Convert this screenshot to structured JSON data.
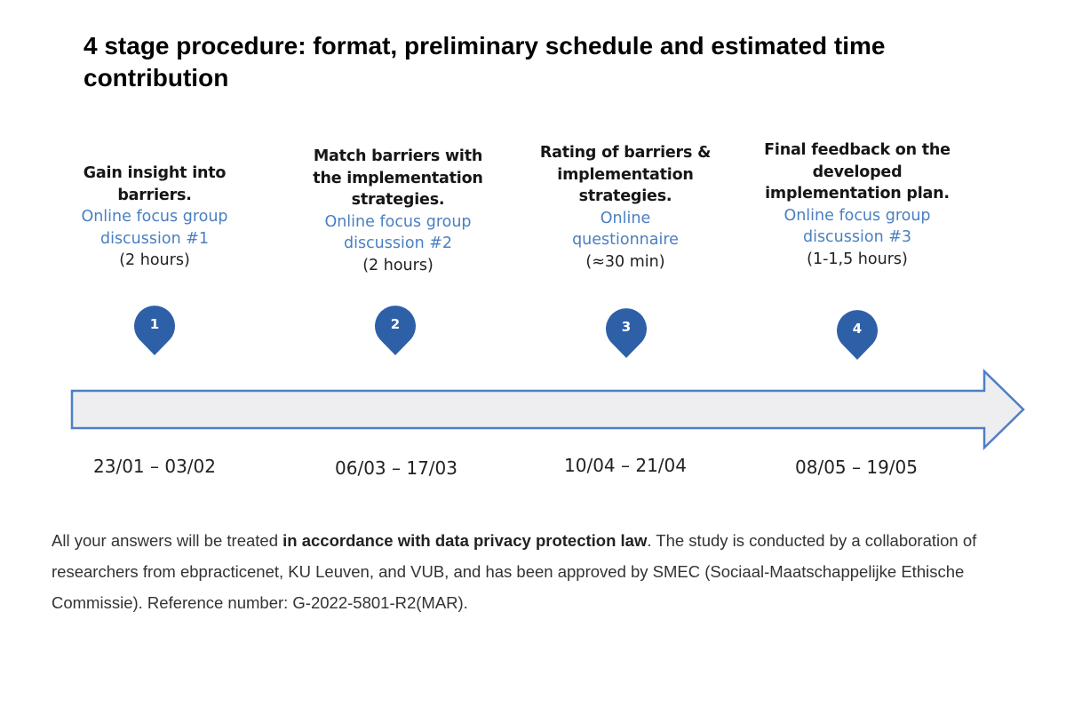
{
  "title": "4 stage procedure: format, preliminary schedule and estimated time contribution",
  "stages": [
    {
      "number": "1",
      "title_lines": [
        "Gain insight into",
        "barriers."
      ],
      "method_lines": [
        "Online focus group",
        "discussion #1"
      ],
      "duration": "(2 hours)",
      "dates": "23/01 – 03/02"
    },
    {
      "number": "2",
      "title_lines": [
        "Match barriers with",
        "the implementation",
        "strategies."
      ],
      "method_lines": [
        "Online focus group",
        "discussion #2"
      ],
      "duration": "(2 hours)",
      "dates": "06/03 – 17/03"
    },
    {
      "number": "3",
      "title_lines": [
        "Rating of barriers &",
        "implementation",
        "strategies."
      ],
      "method_lines": [
        "Online",
        "questionnaire"
      ],
      "duration": "(≈30 min)",
      "dates": "10/04 – 21/04"
    },
    {
      "number": "4",
      "title_lines": [
        "Final feedback on the",
        "developed",
        "implementation plan."
      ],
      "method_lines": [
        "Online focus group",
        "discussion #3"
      ],
      "duration": "(1-1,5 hours)",
      "dates": "08/05 – 19/05"
    }
  ],
  "note": {
    "before": "All your answers will be treated ",
    "bold": "in accordance with data privacy protection law",
    "after": ". The study is conducted by a collaboration of researchers from ebpracticenet, KU Leuven, and VUB, and has been approved by SMEC (Sociaal-Maatschappelijke Ethische Commissie). Reference number: G-2022-5801-R2(MAR)."
  },
  "colors": {
    "marker_fill": "#2e60a8",
    "method_text": "#4a7fc1",
    "arrow_fill": "#eeeef0",
    "arrow_stroke": "#4f7fc4"
  },
  "icons": {
    "marker": "map-pin-icon"
  }
}
